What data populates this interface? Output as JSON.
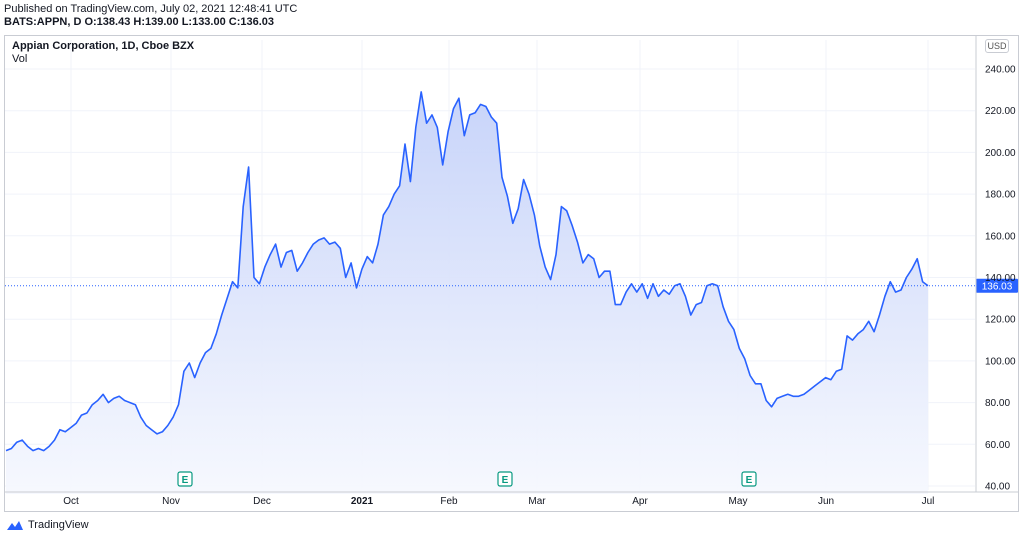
{
  "header": {
    "published_line": "Published on TradingView.com, July 02, 2021 12:48:41 UTC",
    "ohlc_line": "BATS:APPN, D  O:138.43 H:139.00 L:133.00 C:136.03"
  },
  "legend": {
    "title": "Appian Corporation, 1D, Cboe BZX",
    "indicator": "Vol"
  },
  "currency_badge": "USD",
  "footer": {
    "brand": "TradingView"
  },
  "colors": {
    "line": "#2962ff",
    "fill_top": "#c5d2f9",
    "fill_bottom": "#f6f8fe",
    "last_price_bg": "#2962ff",
    "earnings": "#089981",
    "grid": "#f0f3fa"
  },
  "chart_data": {
    "type": "area",
    "symbol": "BATS:APPN",
    "ylim": [
      40,
      245
    ],
    "y_ticks": [
      "240.00",
      "220.00",
      "200.00",
      "180.00",
      "160.00",
      "140.00",
      "120.00",
      "100.00",
      "80.00",
      "60.00",
      "40.00"
    ],
    "x_ticks": [
      "Oct",
      "Nov",
      "Dec",
      "2021",
      "Feb",
      "Mar",
      "Apr",
      "May",
      "Jun",
      "Jul"
    ],
    "last_price": "136.03",
    "earnings_markers": [
      "Nov",
      "Feb",
      "May"
    ],
    "earnings_label": "E",
    "grid": true,
    "series": [
      {
        "values": [
          57,
          58,
          61,
          62,
          59,
          57,
          58,
          57,
          59,
          62,
          67,
          66,
          68,
          70,
          74,
          75,
          79,
          81,
          84,
          80,
          82,
          83,
          81,
          80,
          79,
          73,
          69,
          67,
          65,
          66,
          69,
          73,
          79,
          95,
          99,
          92,
          99,
          104,
          106,
          113,
          122,
          130,
          138,
          135,
          174,
          193,
          140,
          137,
          145,
          151,
          156,
          145,
          152,
          153,
          143,
          147,
          152,
          156,
          158,
          159,
          156,
          157,
          154,
          140,
          147,
          135,
          144,
          150,
          147,
          156,
          170,
          174,
          180,
          184,
          204,
          186,
          212,
          229,
          214,
          218,
          212,
          194,
          210,
          221,
          226,
          208,
          218,
          219,
          223,
          222,
          217,
          214,
          188,
          179,
          166,
          173,
          187,
          180,
          170,
          155,
          145,
          139,
          151,
          174,
          172,
          165,
          157,
          147,
          151,
          149,
          140,
          143,
          143,
          127,
          127,
          133,
          137,
          133,
          137,
          130,
          137,
          131,
          134,
          132,
          136,
          137,
          131,
          122,
          127,
          128,
          136,
          137,
          136,
          126,
          119,
          115,
          106,
          101,
          93,
          89,
          89,
          81,
          78,
          82,
          83,
          84,
          83,
          83,
          84,
          86,
          88,
          90,
          92,
          91,
          95,
          96,
          112,
          110,
          113,
          115,
          119,
          114,
          122,
          131,
          138,
          133,
          134,
          140,
          144,
          149,
          138,
          136
        ],
        "x_index_range": [
          0,
          174
        ]
      }
    ]
  }
}
